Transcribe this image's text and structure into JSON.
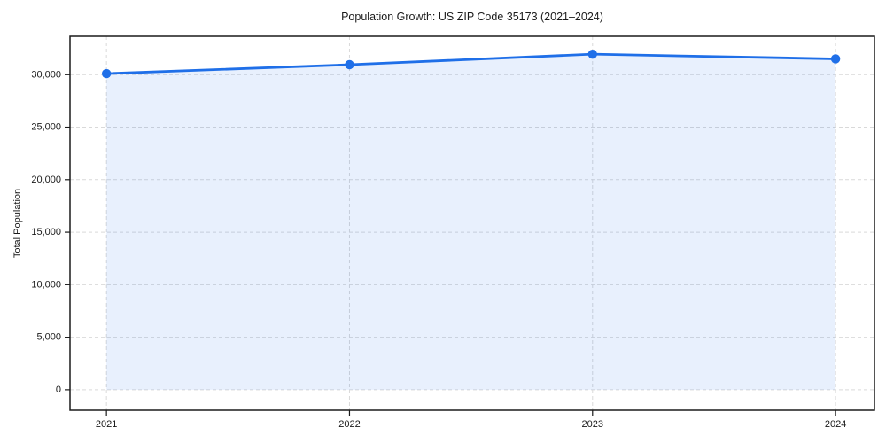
{
  "chart_data": {
    "type": "area",
    "title": "Population Growth: US ZIP Code 35173 (2021–2024)",
    "xlabel": "",
    "ylabel": "Total Population",
    "x": [
      2021,
      2022,
      2023,
      2024
    ],
    "x_tick_labels": [
      "2021",
      "2022",
      "2023",
      "2024"
    ],
    "series": [
      {
        "name": "Total Population",
        "values": [
          30100,
          30950,
          31950,
          31500
        ]
      }
    ],
    "y_ticks": [
      0,
      5000,
      10000,
      15000,
      20000,
      25000,
      30000
    ],
    "y_tick_labels": [
      "0",
      "5,000",
      "10,000",
      "15,000",
      "20,000",
      "25,000",
      "30,000"
    ],
    "xlim": [
      2020.85,
      2024.16
    ],
    "ylim": [
      -1950,
      33650
    ],
    "fill_baseline": 0,
    "grid": "dashed, both axes",
    "legend": "none",
    "colors": {
      "line": "#1f6fe8",
      "fill": "#e8f0fc",
      "grid": "#d9d9d9",
      "spine": "#1a1a1a"
    },
    "marker": "circle"
  }
}
